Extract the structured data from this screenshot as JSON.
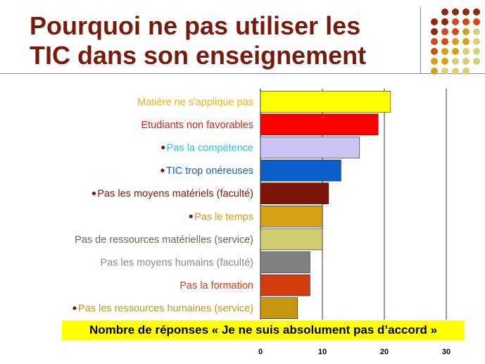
{
  "title_line1": "Pourquoi ne pas utiliser les",
  "title_line2": "TIC dans son enseignement",
  "decor_colors": {
    "brown": "#8b2a0e",
    "orange": "#d24a1a",
    "gold": "#d4a017",
    "khaki": "#d8cf7a"
  },
  "footer": "Nombre de réponses « Je ne suis absolument pas d’accord »",
  "chart_data": {
    "type": "bar",
    "orientation": "horizontal",
    "xlim": [
      0,
      30
    ],
    "xticks": [
      "0",
      "10",
      "20",
      "30"
    ],
    "grid": true,
    "categories": [
      {
        "label": "Matière ne s'applique pas",
        "value": 21,
        "color": "#ffff00",
        "label_color": "#e1b419",
        "bullet": false
      },
      {
        "label": "Etudiants non favorables",
        "value": 19,
        "color": "#ff0000",
        "label_color": "#d7261a",
        "bullet": false
      },
      {
        "label": "Pas la compétence",
        "value": 16,
        "color": "#c8c4f4",
        "label_color": "#25c1e6",
        "bullet": true
      },
      {
        "label": "TIC trop onéreuses",
        "value": 13,
        "color": "#0a5fc8",
        "label_color": "#1663c8",
        "bullet": true
      },
      {
        "label": "Pas les moyens matériels (faculté)",
        "value": 11,
        "color": "#7d1608",
        "label_color": "#7a1a0c",
        "bullet": true
      },
      {
        "label": "Pas le temps",
        "value": 10,
        "color": "#d8a016",
        "label_color": "#d19a18",
        "bullet": true
      },
      {
        "label": "Pas de ressources matérielles (service)",
        "value": 10,
        "color": "#d0cc70",
        "label_color": "#6a6a55",
        "bullet": false
      },
      {
        "label": "Pas les moyens humains (faculté)",
        "value": 8,
        "color": "#808080",
        "label_color": "#8a8a8a",
        "bullet": false
      },
      {
        "label": "Pas la formation",
        "value": 8,
        "color": "#d23c0e",
        "label_color": "#d23c0e",
        "bullet": false
      },
      {
        "label": "Pas les ressources humaines (service)",
        "value": 6,
        "color": "#c8960e",
        "label_color": "#c8960e",
        "bullet": true
      }
    ]
  }
}
